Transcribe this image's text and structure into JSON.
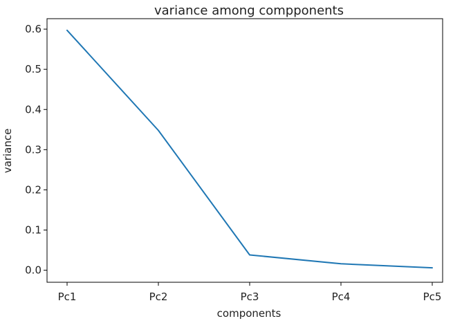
{
  "chart_data": {
    "type": "line",
    "title": "variance among compponents",
    "xlabel": "components",
    "ylabel": "variance",
    "categories": [
      "Pc1",
      "Pc2",
      "Pc3",
      "Pc4",
      "Pc5"
    ],
    "series": [
      {
        "values": [
          0.597,
          0.348,
          0.038,
          0.016,
          0.006
        ],
        "color": "#1f77b4"
      }
    ],
    "ylim": [
      -0.03,
      0.626
    ],
    "yticks": [
      0.0,
      0.1,
      0.2,
      0.3,
      0.4,
      0.5,
      0.6
    ],
    "grid": false,
    "legend": false
  }
}
